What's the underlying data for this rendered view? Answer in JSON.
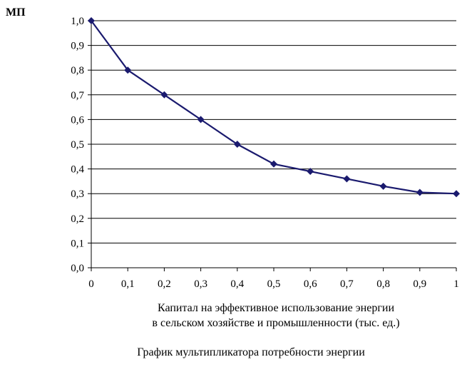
{
  "chart_data": {
    "type": "line",
    "ylabel": "МП",
    "xlabel_lines": [
      "Капитал на эффективное использование энергии",
      "в сельском хозяйстве и промышленности (тыс. ед.)"
    ],
    "caption": "График мультипликатора потребности энергии",
    "x": [
      0,
      0.1,
      0.2,
      0.3,
      0.4,
      0.5,
      0.6,
      0.7,
      0.8,
      0.9,
      1
    ],
    "x_tick_labels": [
      "0",
      "0,1",
      "0,2",
      "0,3",
      "0,4",
      "0,5",
      "0,6",
      "0,7",
      "0,8",
      "0,9",
      "1"
    ],
    "y_ticks": [
      0,
      0.1,
      0.2,
      0.3,
      0.4,
      0.5,
      0.6,
      0.7,
      0.8,
      0.9,
      1.0
    ],
    "y_tick_labels": [
      "0,0",
      "0,1",
      "0,2",
      "0,3",
      "0,4",
      "0,5",
      "0,6",
      "0,7",
      "0,8",
      "0,9",
      "1,0"
    ],
    "series": [
      {
        "values": [
          1.0,
          0.8,
          0.7,
          0.6,
          0.5,
          0.42,
          0.39,
          0.36,
          0.33,
          0.305,
          0.3
        ]
      }
    ],
    "xlim": [
      0,
      1
    ],
    "ylim": [
      0,
      1.0
    ],
    "grid": "horizontal",
    "line_color": "#1a1a6e"
  }
}
